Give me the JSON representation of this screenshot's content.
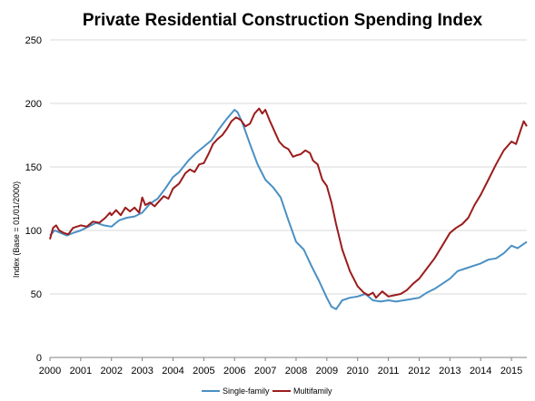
{
  "chart_data": {
    "type": "line",
    "title": "Private Residential Construction Spending Index",
    "ylabel": "Index (Base = 01/01/2000)",
    "xlabel": "",
    "xlim": [
      2000.0,
      2015.5
    ],
    "ylim": [
      0,
      250
    ],
    "yticks": [
      0,
      50,
      100,
      150,
      200,
      250
    ],
    "xticks": [
      "2000",
      "2001",
      "2002",
      "2003",
      "2004",
      "2005",
      "2006",
      "2007",
      "2008",
      "2009",
      "2010",
      "2011",
      "2012",
      "2013",
      "2014",
      "2015"
    ],
    "grid": true,
    "legend": "bottom",
    "series": [
      {
        "name": "Single-family",
        "color": "#4a90c4",
        "points": [
          [
            2000.0,
            96
          ],
          [
            2000.15,
            100
          ],
          [
            2000.35,
            98
          ],
          [
            2000.55,
            96
          ],
          [
            2000.75,
            98
          ],
          [
            2001.0,
            100
          ],
          [
            2001.25,
            103
          ],
          [
            2001.5,
            106
          ],
          [
            2001.75,
            104
          ],
          [
            2002.0,
            103
          ],
          [
            2002.25,
            108
          ],
          [
            2002.5,
            110
          ],
          [
            2002.75,
            111
          ],
          [
            2003.0,
            114
          ],
          [
            2003.25,
            121
          ],
          [
            2003.5,
            125
          ],
          [
            2003.75,
            133
          ],
          [
            2004.0,
            142
          ],
          [
            2004.2,
            146
          ],
          [
            2004.5,
            155
          ],
          [
            2004.75,
            161
          ],
          [
            2005.0,
            166
          ],
          [
            2005.25,
            171
          ],
          [
            2005.5,
            180
          ],
          [
            2005.75,
            188
          ],
          [
            2006.0,
            195
          ],
          [
            2006.1,
            193
          ],
          [
            2006.25,
            185
          ],
          [
            2006.5,
            168
          ],
          [
            2006.75,
            152
          ],
          [
            2007.0,
            140
          ],
          [
            2007.25,
            134
          ],
          [
            2007.5,
            126
          ],
          [
            2007.75,
            108
          ],
          [
            2008.0,
            91
          ],
          [
            2008.25,
            85
          ],
          [
            2008.5,
            72
          ],
          [
            2008.75,
            60
          ],
          [
            2009.0,
            47
          ],
          [
            2009.15,
            40
          ],
          [
            2009.3,
            38
          ],
          [
            2009.5,
            45
          ],
          [
            2009.75,
            47
          ],
          [
            2010.0,
            48
          ],
          [
            2010.25,
            50
          ],
          [
            2010.5,
            45
          ],
          [
            2010.75,
            44
          ],
          [
            2011.0,
            45
          ],
          [
            2011.25,
            44
          ],
          [
            2011.5,
            45
          ],
          [
            2011.75,
            46
          ],
          [
            2012.0,
            47
          ],
          [
            2012.25,
            51
          ],
          [
            2012.5,
            54
          ],
          [
            2012.75,
            58
          ],
          [
            2013.0,
            62
          ],
          [
            2013.25,
            68
          ],
          [
            2013.5,
            70
          ],
          [
            2013.75,
            72
          ],
          [
            2014.0,
            74
          ],
          [
            2014.25,
            77
          ],
          [
            2014.5,
            78
          ],
          [
            2014.75,
            82
          ],
          [
            2015.0,
            88
          ],
          [
            2015.2,
            86
          ],
          [
            2015.5,
            91
          ]
        ]
      },
      {
        "name": "Multifamily",
        "color": "#9b1c1c",
        "points": [
          [
            2000.0,
            93
          ],
          [
            2000.1,
            102
          ],
          [
            2000.2,
            104
          ],
          [
            2000.3,
            100
          ],
          [
            2000.45,
            98
          ],
          [
            2000.6,
            97
          ],
          [
            2000.75,
            102
          ],
          [
            2001.0,
            104
          ],
          [
            2001.2,
            103
          ],
          [
            2001.4,
            107
          ],
          [
            2001.6,
            106
          ],
          [
            2001.8,
            110
          ],
          [
            2001.95,
            114
          ],
          [
            2002.0,
            112
          ],
          [
            2002.15,
            116
          ],
          [
            2002.3,
            112
          ],
          [
            2002.45,
            118
          ],
          [
            2002.6,
            115
          ],
          [
            2002.75,
            118
          ],
          [
            2002.9,
            114
          ],
          [
            2003.0,
            126
          ],
          [
            2003.1,
            120
          ],
          [
            2003.25,
            122
          ],
          [
            2003.4,
            119
          ],
          [
            2003.55,
            123
          ],
          [
            2003.7,
            127
          ],
          [
            2003.85,
            125
          ],
          [
            2004.0,
            133
          ],
          [
            2004.2,
            137
          ],
          [
            2004.4,
            145
          ],
          [
            2004.55,
            148
          ],
          [
            2004.7,
            146
          ],
          [
            2004.85,
            152
          ],
          [
            2005.0,
            153
          ],
          [
            2005.15,
            160
          ],
          [
            2005.3,
            168
          ],
          [
            2005.45,
            172
          ],
          [
            2005.6,
            175
          ],
          [
            2005.75,
            180
          ],
          [
            2005.9,
            186
          ],
          [
            2006.05,
            189
          ],
          [
            2006.2,
            187
          ],
          [
            2006.35,
            182
          ],
          [
            2006.5,
            184
          ],
          [
            2006.65,
            192
          ],
          [
            2006.8,
            196
          ],
          [
            2006.9,
            192
          ],
          [
            2007.0,
            195
          ],
          [
            2007.15,
            186
          ],
          [
            2007.3,
            178
          ],
          [
            2007.45,
            170
          ],
          [
            2007.6,
            166
          ],
          [
            2007.75,
            164
          ],
          [
            2007.9,
            158
          ],
          [
            2008.0,
            159
          ],
          [
            2008.15,
            160
          ],
          [
            2008.3,
            163
          ],
          [
            2008.45,
            161
          ],
          [
            2008.55,
            155
          ],
          [
            2008.7,
            152
          ],
          [
            2008.85,
            140
          ],
          [
            2009.0,
            135
          ],
          [
            2009.15,
            122
          ],
          [
            2009.3,
            105
          ],
          [
            2009.5,
            85
          ],
          [
            2009.75,
            68
          ],
          [
            2010.0,
            56
          ],
          [
            2010.2,
            51
          ],
          [
            2010.35,
            49
          ],
          [
            2010.5,
            51
          ],
          [
            2010.6,
            47
          ],
          [
            2010.8,
            52
          ],
          [
            2011.0,
            48
          ],
          [
            2011.2,
            49
          ],
          [
            2011.4,
            50
          ],
          [
            2011.6,
            53
          ],
          [
            2011.8,
            58
          ],
          [
            2012.0,
            62
          ],
          [
            2012.25,
            70
          ],
          [
            2012.5,
            78
          ],
          [
            2012.75,
            88
          ],
          [
            2013.0,
            98
          ],
          [
            2013.2,
            102
          ],
          [
            2013.4,
            105
          ],
          [
            2013.6,
            110
          ],
          [
            2013.8,
            120
          ],
          [
            2014.0,
            128
          ],
          [
            2014.25,
            140
          ],
          [
            2014.5,
            152
          ],
          [
            2014.75,
            163
          ],
          [
            2015.0,
            170
          ],
          [
            2015.15,
            168
          ],
          [
            2015.3,
            179
          ],
          [
            2015.4,
            186
          ],
          [
            2015.5,
            182
          ]
        ]
      }
    ]
  }
}
